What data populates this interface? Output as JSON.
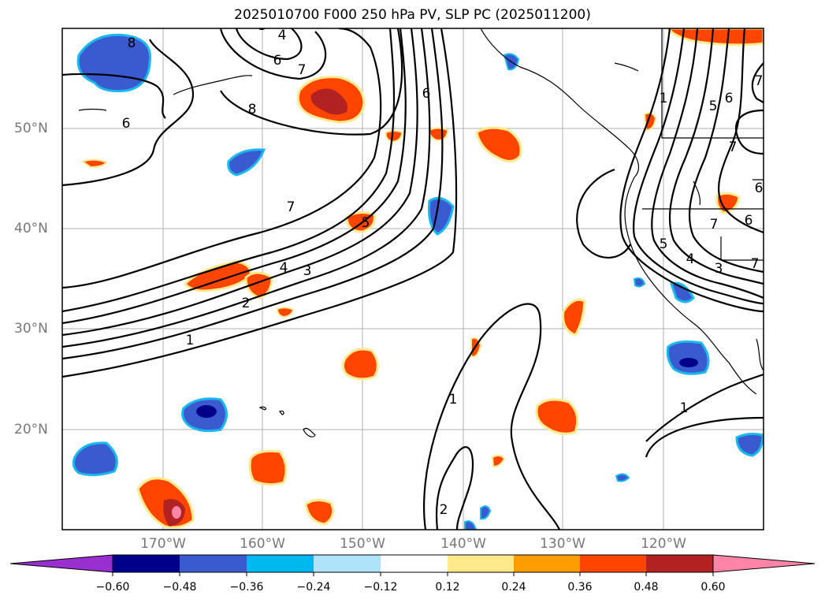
{
  "title": "2025010700 F000 250 hPa PV, SLP PC (2025011200)",
  "map": {
    "lon_labels": [
      "170°W",
      "160°W",
      "150°W",
      "140°W",
      "130°W",
      "120°W"
    ],
    "lat_labels": [
      "50°N",
      "40°N",
      "30°N",
      "20°N"
    ],
    "contour_labels": [
      "8",
      "4",
      "3",
      "6",
      "7",
      "8",
      "6",
      "6",
      "7",
      "5",
      "4",
      "3",
      "2",
      "1",
      "1",
      "2",
      "1",
      "1",
      "7",
      "6",
      "5",
      "7",
      "6",
      "7",
      "5",
      "4",
      "3",
      "7",
      "6"
    ],
    "colors": {
      "coast": "#000000",
      "grid": "#b0b0b0",
      "contour": "#000000",
      "neg_strong": "#00008b",
      "neg_mid": "#3a5bd0",
      "neg_light": "#1ab8ef",
      "pos_light": "#ffe98a",
      "pos_mid": "#ff4500",
      "pos_strong": "#b22222",
      "pos_max": "#ff85a8"
    }
  },
  "colorbar": {
    "ticks": [
      "−0.60",
      "−0.48",
      "−0.36",
      "−0.24",
      "−0.12",
      "0.12",
      "0.24",
      "0.36",
      "0.48",
      "0.60"
    ],
    "colors": [
      "#9a2fd0",
      "#00008b",
      "#3a5bd0",
      "#00b8f0",
      "#aee3fa",
      "#ffffff",
      "#ffe98a",
      "#ff9c00",
      "#ff4500",
      "#b22222",
      "#ff85a8",
      "#ff85a8"
    ]
  }
}
